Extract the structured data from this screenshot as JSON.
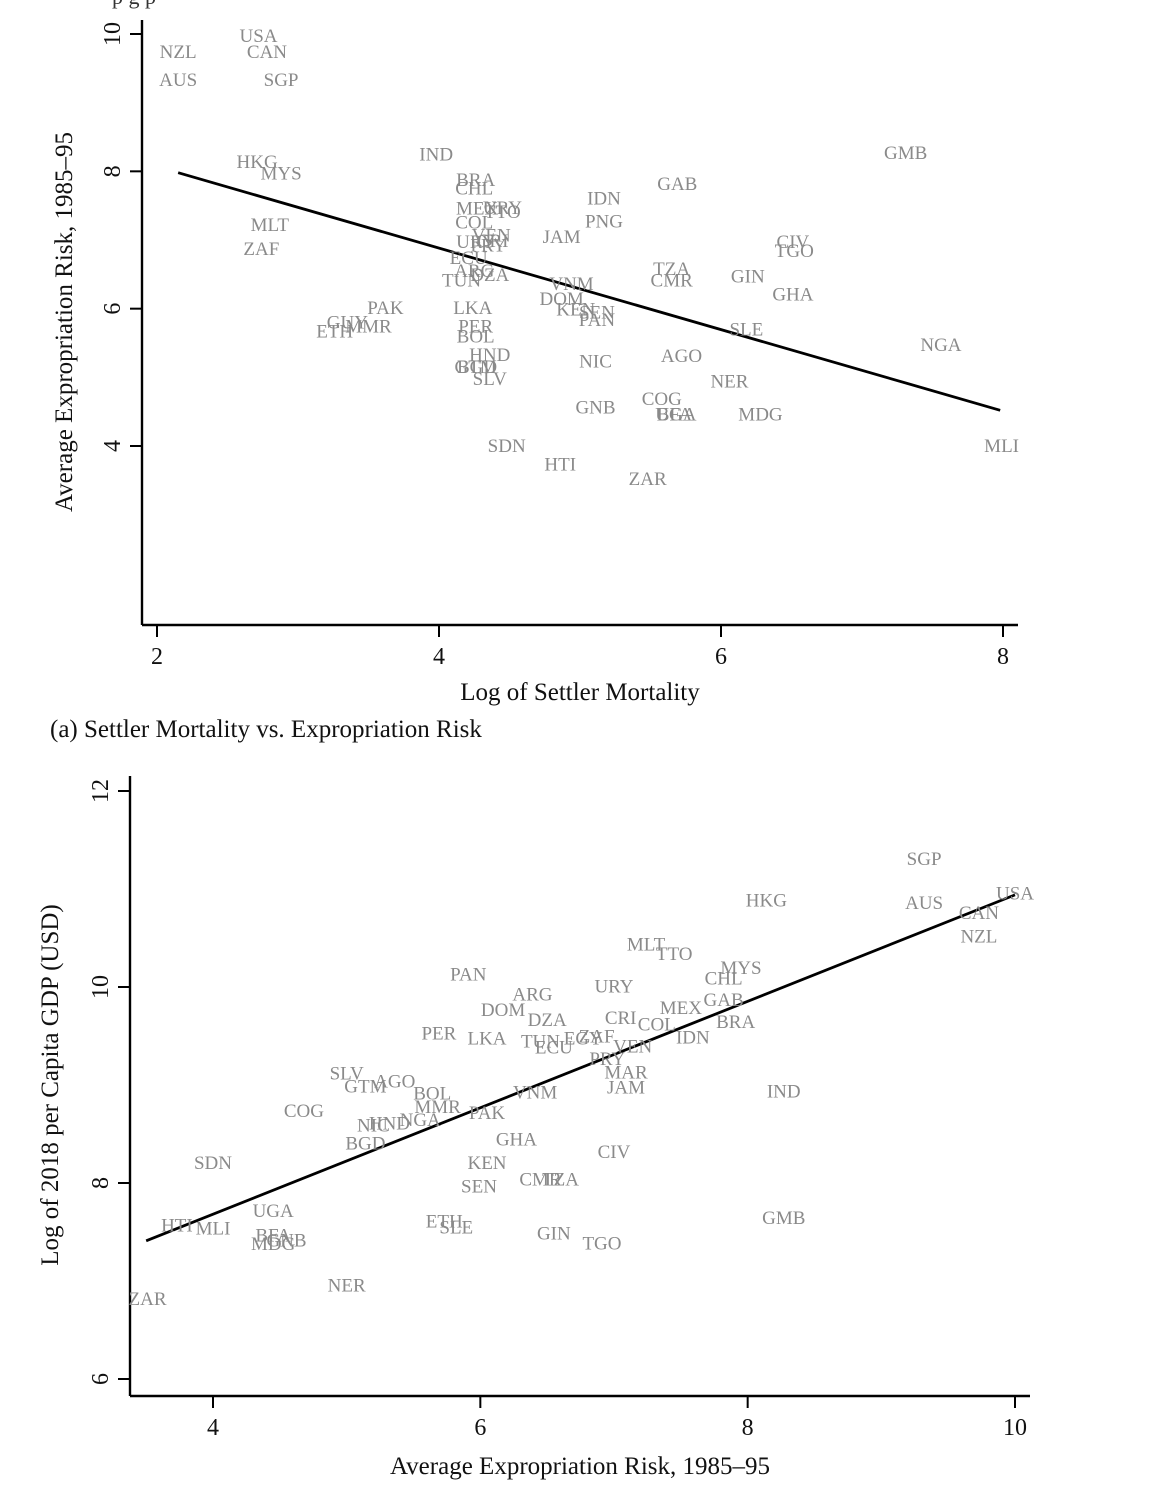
{
  "top_text": "p      g                    p",
  "caption_a": "(a) Settler Mortality vs. Expropriation Risk",
  "chart_data": [
    {
      "type": "scatter",
      "xlabel": "Log of Settler Mortality",
      "ylabel": "Average Expropriation Risk, 1985–95",
      "xlim": [
        1.9,
        8.1
      ],
      "ylim": [
        1.4,
        10.2
      ],
      "xticks": [
        2,
        4,
        6,
        8
      ],
      "yticks": [
        4,
        6,
        8,
        10
      ],
      "grid": false,
      "fit_line": [
        [
          2.15,
          7.98
        ],
        [
          7.98,
          4.52
        ]
      ],
      "points": [
        {
          "label": "USA",
          "x": 2.72,
          "y": 9.96
        },
        {
          "label": "NZL",
          "x": 2.15,
          "y": 9.73
        },
        {
          "label": "CAN",
          "x": 2.78,
          "y": 9.73
        },
        {
          "label": "AUS",
          "x": 2.15,
          "y": 9.32
        },
        {
          "label": "SGP",
          "x": 2.88,
          "y": 9.32
        },
        {
          "label": "HKG",
          "x": 2.71,
          "y": 8.13
        },
        {
          "label": "MYS",
          "x": 2.88,
          "y": 7.96
        },
        {
          "label": "IND",
          "x": 3.98,
          "y": 8.24
        },
        {
          "label": "MLT",
          "x": 2.8,
          "y": 7.21
        },
        {
          "label": "ZAF",
          "x": 2.74,
          "y": 6.86
        },
        {
          "label": "BRA",
          "x": 4.26,
          "y": 7.87
        },
        {
          "label": "CHL",
          "x": 4.25,
          "y": 7.74
        },
        {
          "label": "MEX",
          "x": 4.27,
          "y": 7.45
        },
        {
          "label": "TTO",
          "x": 4.45,
          "y": 7.4
        },
        {
          "label": "URY",
          "x": 4.45,
          "y": 7.46
        },
        {
          "label": "COL",
          "x": 4.25,
          "y": 7.25
        },
        {
          "label": "VEN",
          "x": 4.37,
          "y": 7.06
        },
        {
          "label": "CRI",
          "x": 4.38,
          "y": 6.98
        },
        {
          "label": "URY",
          "x": 4.26,
          "y": 6.96
        },
        {
          "label": "PRY",
          "x": 4.35,
          "y": 6.91
        },
        {
          "label": "ECU",
          "x": 4.21,
          "y": 6.73
        },
        {
          "label": "ARG",
          "x": 4.25,
          "y": 6.54
        },
        {
          "label": "DZA",
          "x": 4.36,
          "y": 6.48
        },
        {
          "label": "TUN",
          "x": 4.16,
          "y": 6.4
        },
        {
          "label": "IDN",
          "x": 5.17,
          "y": 7.6
        },
        {
          "label": "PNG",
          "x": 5.17,
          "y": 7.26
        },
        {
          "label": "JAM",
          "x": 4.87,
          "y": 7.04
        },
        {
          "label": "GAB",
          "x": 5.69,
          "y": 7.81
        },
        {
          "label": "GMB",
          "x": 7.31,
          "y": 8.26
        },
        {
          "label": "TZA",
          "x": 5.65,
          "y": 6.57
        },
        {
          "label": "CMR",
          "x": 5.65,
          "y": 6.4
        },
        {
          "label": "GIN",
          "x": 6.19,
          "y": 6.46
        },
        {
          "label": "CIV",
          "x": 6.51,
          "y": 6.96
        },
        {
          "label": "TGO",
          "x": 6.52,
          "y": 6.83
        },
        {
          "label": "GHA",
          "x": 6.51,
          "y": 6.2
        },
        {
          "label": "VNM",
          "x": 4.94,
          "y": 6.35
        },
        {
          "label": "DOM",
          "x": 4.87,
          "y": 6.13
        },
        {
          "label": "KEN",
          "x": 4.97,
          "y": 5.98
        },
        {
          "label": "SEN",
          "x": 5.12,
          "y": 5.94
        },
        {
          "label": "PAN",
          "x": 5.12,
          "y": 5.83
        },
        {
          "label": "SLE",
          "x": 6.18,
          "y": 5.69
        },
        {
          "label": "NGA",
          "x": 7.56,
          "y": 5.46
        },
        {
          "label": "PAK",
          "x": 3.62,
          "y": 6.0
        },
        {
          "label": "GUY",
          "x": 3.35,
          "y": 5.79
        },
        {
          "label": "MMR",
          "x": 3.5,
          "y": 5.73
        },
        {
          "label": "ETH",
          "x": 3.26,
          "y": 5.66
        },
        {
          "label": "LKA",
          "x": 4.24,
          "y": 6.0
        },
        {
          "label": "PER",
          "x": 4.26,
          "y": 5.73
        },
        {
          "label": "BOL",
          "x": 4.26,
          "y": 5.59
        },
        {
          "label": "HND",
          "x": 4.36,
          "y": 5.32
        },
        {
          "label": "BGD",
          "x": 4.27,
          "y": 5.14
        },
        {
          "label": "GTM",
          "x": 4.26,
          "y": 5.14
        },
        {
          "label": "SLV",
          "x": 4.36,
          "y": 4.97
        },
        {
          "label": "NIC",
          "x": 5.11,
          "y": 5.22
        },
        {
          "label": "AGO",
          "x": 5.72,
          "y": 5.3
        },
        {
          "label": "NER",
          "x": 6.06,
          "y": 4.93
        },
        {
          "label": "GNB",
          "x": 5.11,
          "y": 4.55
        },
        {
          "label": "COG",
          "x": 5.58,
          "y": 4.68
        },
        {
          "label": "BFA",
          "x": 5.67,
          "y": 4.45
        },
        {
          "label": "UGA",
          "x": 5.68,
          "y": 4.45
        },
        {
          "label": "MDG",
          "x": 6.28,
          "y": 4.45
        },
        {
          "label": "SDN",
          "x": 4.48,
          "y": 3.99
        },
        {
          "label": "HTI",
          "x": 4.86,
          "y": 3.72
        },
        {
          "label": "ZAR",
          "x": 5.48,
          "y": 3.51
        },
        {
          "label": "MLI",
          "x": 7.99,
          "y": 3.99
        }
      ]
    },
    {
      "type": "scatter",
      "xlabel": "Average Expropriation Risk, 1985–95",
      "ylabel": "Log of 2018 per Capita GDP (USD)",
      "xlim": [
        3.25,
        10.2
      ],
      "ylim": [
        5.8,
        12.2
      ],
      "xticks": [
        4,
        6,
        8,
        10
      ],
      "yticks": [
        6,
        8,
        10,
        12
      ],
      "grid": false,
      "fit_line": [
        [
          3.5,
          7.41
        ],
        [
          10.0,
          10.94
        ]
      ],
      "points": [
        {
          "label": "SGP",
          "x": 9.32,
          "y": 11.3
        },
        {
          "label": "USA",
          "x": 10.0,
          "y": 10.95
        },
        {
          "label": "AUS",
          "x": 9.32,
          "y": 10.85
        },
        {
          "label": "CAN",
          "x": 9.73,
          "y": 10.75
        },
        {
          "label": "NZL",
          "x": 9.73,
          "y": 10.51
        },
        {
          "label": "HKG",
          "x": 8.14,
          "y": 10.88
        },
        {
          "label": "MLT",
          "x": 7.24,
          "y": 10.43
        },
        {
          "label": "TTO",
          "x": 7.45,
          "y": 10.33
        },
        {
          "label": "MYS",
          "x": 7.95,
          "y": 10.19
        },
        {
          "label": "CHL",
          "x": 7.82,
          "y": 10.08
        },
        {
          "label": "GAB",
          "x": 7.82,
          "y": 9.86
        },
        {
          "label": "MEX",
          "x": 7.5,
          "y": 9.78
        },
        {
          "label": "BRA",
          "x": 7.91,
          "y": 9.64
        },
        {
          "label": "COL",
          "x": 7.32,
          "y": 9.61
        },
        {
          "label": "CRI",
          "x": 7.05,
          "y": 9.68
        },
        {
          "label": "IDN",
          "x": 7.59,
          "y": 9.48
        },
        {
          "label": "URY",
          "x": 7.0,
          "y": 10.0
        },
        {
          "label": "PAN",
          "x": 5.91,
          "y": 10.12
        },
        {
          "label": "ARG",
          "x": 6.39,
          "y": 9.92
        },
        {
          "label": "DOM",
          "x": 6.17,
          "y": 9.76
        },
        {
          "label": "DZA",
          "x": 6.5,
          "y": 9.66
        },
        {
          "label": "PER",
          "x": 5.69,
          "y": 9.52
        },
        {
          "label": "LKA",
          "x": 6.05,
          "y": 9.47
        },
        {
          "label": "TUN",
          "x": 6.45,
          "y": 9.44
        },
        {
          "label": "ECU",
          "x": 6.55,
          "y": 9.38
        },
        {
          "label": "ZAF",
          "x": 6.87,
          "y": 9.49
        },
        {
          "label": "EGY",
          "x": 6.77,
          "y": 9.47
        },
        {
          "label": "VEN",
          "x": 7.14,
          "y": 9.39
        },
        {
          "label": "PRY",
          "x": 6.95,
          "y": 9.26
        },
        {
          "label": "MAR",
          "x": 7.09,
          "y": 9.12
        },
        {
          "label": "JAM",
          "x": 7.09,
          "y": 8.97
        },
        {
          "label": "IND",
          "x": 8.27,
          "y": 8.93
        },
        {
          "label": "SLV",
          "x": 5.0,
          "y": 9.11
        },
        {
          "label": "GTM",
          "x": 5.14,
          "y": 8.98
        },
        {
          "label": "AGO",
          "x": 5.36,
          "y": 9.03
        },
        {
          "label": "BOL",
          "x": 5.64,
          "y": 8.91
        },
        {
          "label": "MMR",
          "x": 5.68,
          "y": 8.77
        },
        {
          "label": "VNM",
          "x": 6.41,
          "y": 8.92
        },
        {
          "label": "PAK",
          "x": 6.05,
          "y": 8.71
        },
        {
          "label": "NGA",
          "x": 5.55,
          "y": 8.64
        },
        {
          "label": "HND",
          "x": 5.32,
          "y": 8.6
        },
        {
          "label": "NIC",
          "x": 5.2,
          "y": 8.58
        },
        {
          "label": "BGD",
          "x": 5.14,
          "y": 8.4
        },
        {
          "label": "COG",
          "x": 4.68,
          "y": 8.73
        },
        {
          "label": "GHA",
          "x": 6.27,
          "y": 8.44
        },
        {
          "label": "KEN",
          "x": 6.05,
          "y": 8.2
        },
        {
          "label": "SEN",
          "x": 5.99,
          "y": 7.96
        },
        {
          "label": "CMR",
          "x": 6.45,
          "y": 8.03
        },
        {
          "label": "TZA",
          "x": 6.6,
          "y": 8.03
        },
        {
          "label": "CIV",
          "x": 7.0,
          "y": 8.31
        },
        {
          "label": "GMB",
          "x": 8.27,
          "y": 7.64
        },
        {
          "label": "ETH",
          "x": 5.73,
          "y": 7.6
        },
        {
          "label": "SLE",
          "x": 5.82,
          "y": 7.54
        },
        {
          "label": "GIN",
          "x": 6.55,
          "y": 7.48
        },
        {
          "label": "TGO",
          "x": 6.91,
          "y": 7.38
        },
        {
          "label": "SDN",
          "x": 4.0,
          "y": 8.2
        },
        {
          "label": "UGA",
          "x": 4.45,
          "y": 7.71
        },
        {
          "label": "HTI",
          "x": 3.73,
          "y": 7.56
        },
        {
          "label": "MLI",
          "x": 4.0,
          "y": 7.53
        },
        {
          "label": "BFA",
          "x": 4.45,
          "y": 7.46
        },
        {
          "label": "GNB",
          "x": 4.55,
          "y": 7.41
        },
        {
          "label": "MDG",
          "x": 4.45,
          "y": 7.37
        },
        {
          "label": "NER",
          "x": 5.0,
          "y": 6.95
        },
        {
          "label": "ZAR",
          "x": 3.51,
          "y": 6.81
        }
      ]
    }
  ]
}
